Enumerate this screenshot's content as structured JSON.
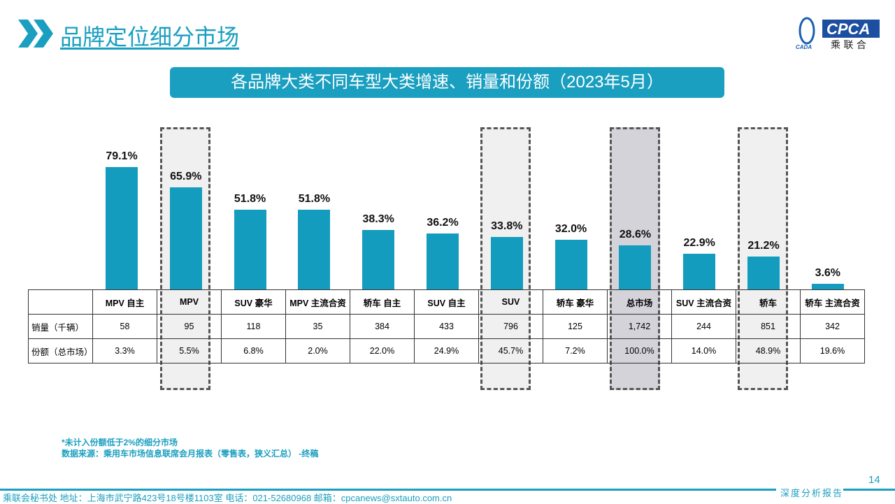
{
  "header": {
    "title": "品牌定位细分市场",
    "logo_text": "CPCA",
    "logo_sub": "乘联会",
    "logo_small": "CADA"
  },
  "subtitle": "各品牌大类不同车型大类增速、销量和份额（2023年5月）",
  "colors": {
    "accent": "#1a9fc0",
    "bar": "#139cbd"
  },
  "chart_data": {
    "type": "bar",
    "categories": [
      "MPV 自主",
      "MPV",
      "SUV 豪华",
      "MPV 主流合资",
      "轿车 自主",
      "SUV 自主",
      "SUV",
      "轿车 豪华",
      "总市场",
      "SUV 主流合资",
      "轿车",
      "轿车 主流合资"
    ],
    "values": [
      79.1,
      65.9,
      51.8,
      51.8,
      38.3,
      36.2,
      33.8,
      32.0,
      28.6,
      22.9,
      21.2,
      3.6
    ],
    "labels": [
      "79.1%",
      "65.9%",
      "51.8%",
      "51.8%",
      "38.3%",
      "36.2%",
      "33.8%",
      "32.0%",
      "28.6%",
      "22.9%",
      "21.2%",
      "3.6%"
    ],
    "highlighted": [
      "MPV",
      "SUV",
      "总市场",
      "轿车"
    ],
    "grid": false
  },
  "table": {
    "rows": [
      {
        "label": "销量（千辆）",
        "values": [
          "58",
          "95",
          "118",
          "35",
          "384",
          "433",
          "796",
          "125",
          "1,742",
          "244",
          "851",
          "342"
        ]
      },
      {
        "label": "份额（总市场）",
        "values": [
          "3.3%",
          "5.5%",
          "6.8%",
          "2.0%",
          "22.0%",
          "24.9%",
          "45.7%",
          "7.2%",
          "100.0%",
          "14.0%",
          "48.9%",
          "19.6%"
        ]
      }
    ]
  },
  "notes": [
    "*未计入份额低于2%的细分市场",
    "数据来源：乘用车市场信息联席会月报表（零售表，狭义汇总） -终稿"
  ],
  "footer": {
    "text": "乘联会秘书处  地址：上海市武宁路423号18号楼1103室 电话：021-52680968  邮箱：cpcanews@sxtauto.com.cn",
    "tag": "深度分析报告",
    "page": "14"
  }
}
